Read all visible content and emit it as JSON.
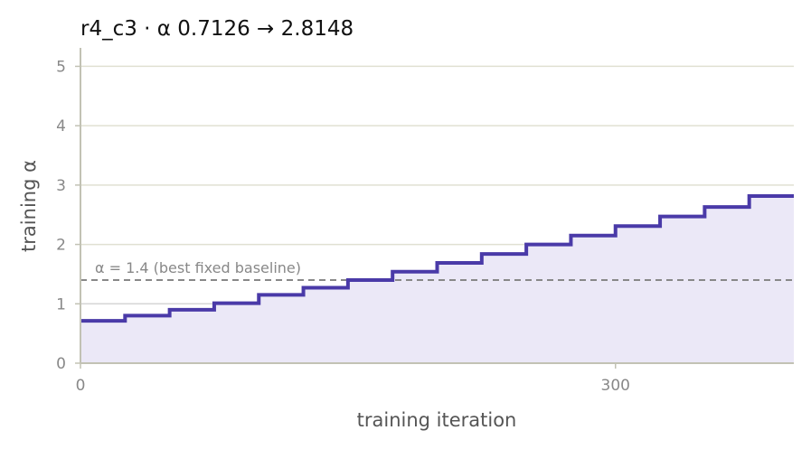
{
  "chart_data": {
    "type": "line",
    "title": "r4_c3   ·   α 0.7126 → 2.8148",
    "xlabel": "training iteration",
    "ylabel": "training α",
    "xlim": [
      0,
      400
    ],
    "ylim": [
      0,
      5.25
    ],
    "xticks": [
      0,
      300
    ],
    "yticks": [
      0,
      1,
      2,
      3,
      4,
      5
    ],
    "grid": "horizontal",
    "step": true,
    "fill_under": true,
    "series": [
      {
        "x": [
          0,
          25,
          50,
          75,
          100,
          125,
          150,
          175,
          200,
          225,
          250,
          275,
          300,
          325,
          350,
          375,
          400
        ],
        "y": [
          0.7126,
          0.8,
          0.9,
          1.01,
          1.15,
          1.27,
          1.4,
          1.54,
          1.69,
          1.84,
          2.0,
          2.15,
          2.31,
          2.47,
          2.63,
          2.8148,
          2.8148
        ]
      }
    ],
    "reference_line": {
      "y": 1.4,
      "label": "α = 1.4 (best fixed baseline)"
    },
    "colors": {
      "line": "#4a3aa8",
      "fill": "#ebe8f7",
      "reference": "#888888",
      "grid_major": "#e0e0d2",
      "grid_minor": "#d6d6d6",
      "axis": "#c2c2b4"
    }
  }
}
